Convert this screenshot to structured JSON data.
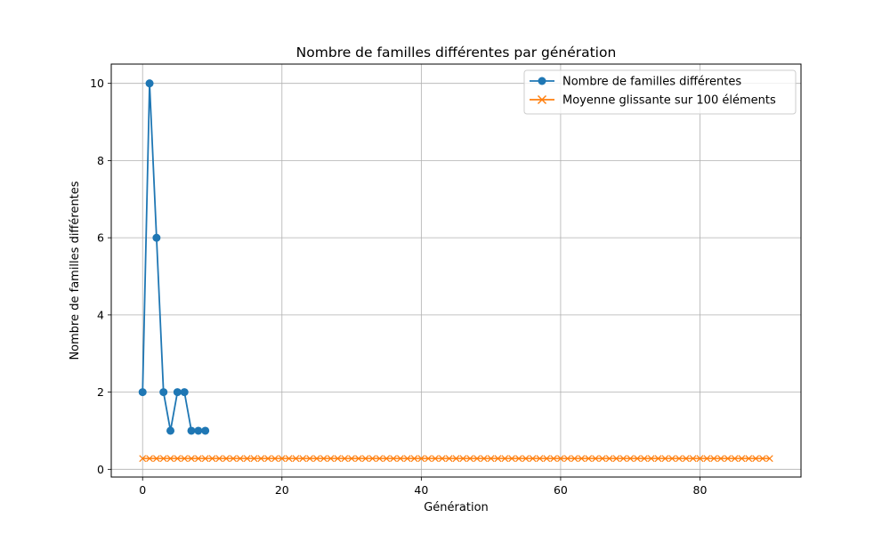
{
  "chart_data": {
    "type": "line",
    "title": "Nombre de familles différentes par génération",
    "xlabel": "Génération",
    "ylabel": "Nombre de familles différentes",
    "xlim": [
      -4.5,
      94.5
    ],
    "ylim": [
      -0.2,
      10.5
    ],
    "xticks": [
      0,
      20,
      40,
      60,
      80
    ],
    "yticks": [
      0,
      2,
      4,
      6,
      8,
      10
    ],
    "grid": true,
    "legend_position": "top-right",
    "series": [
      {
        "name": "Nombre de familles différentes",
        "color": "#1f77b4",
        "marker": "circle",
        "x": [
          0,
          1,
          2,
          3,
          4,
          5,
          6,
          7,
          8,
          9
        ],
        "y": [
          2,
          10,
          6,
          2,
          1,
          2,
          2,
          1,
          1,
          1
        ]
      },
      {
        "name": "Moyenne glissante sur 100 éléments",
        "color": "#ff7f0e",
        "marker": "x",
        "x_start": 0,
        "x_end": 90,
        "y_constant": 0.28
      }
    ]
  }
}
